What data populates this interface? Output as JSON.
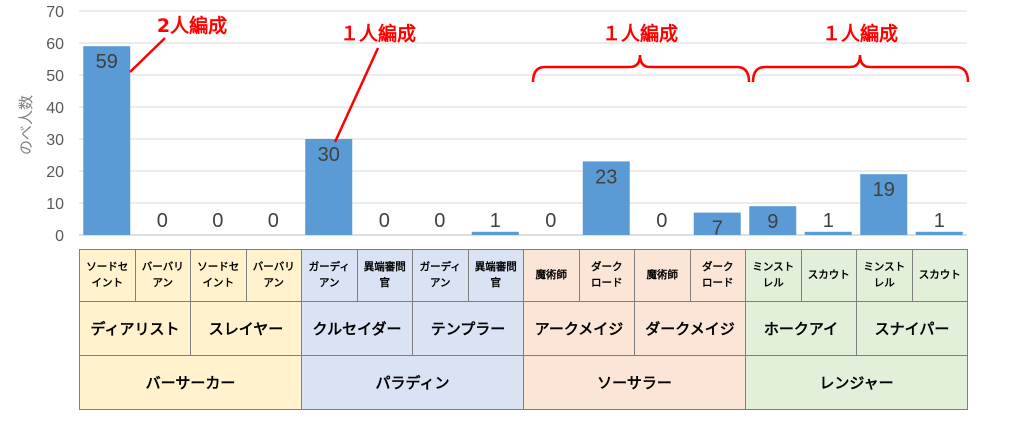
{
  "chart_data": {
    "type": "bar",
    "ylabel": "のべ人数",
    "ylim": [
      0,
      70
    ],
    "yticks": [
      0,
      10,
      20,
      30,
      40,
      50,
      60,
      70
    ],
    "grid": true,
    "categories": [
      "ソードセイント",
      "バーバリアン",
      "ソードセイント",
      "バーバリアン",
      "ガーディアン",
      "異端審問官",
      "ガーディアン",
      "異端審問官",
      "魔術師",
      "ダークロード",
      "魔術師",
      "ダークロード",
      "ミンストレル",
      "スカウト",
      "ミンストレル",
      "スカウト"
    ],
    "values": [
      59,
      0,
      0,
      0,
      30,
      0,
      0,
      1,
      0,
      23,
      0,
      7,
      9,
      1,
      19,
      1
    ],
    "annotations": [
      "2人編成",
      "１人編成",
      "１人編成",
      "１人編成"
    ]
  },
  "table": {
    "row1": [
      [
        "ソードセ",
        "イント"
      ],
      [
        "バーバリ",
        "アン"
      ],
      [
        "ソードセ",
        "イント"
      ],
      [
        "バーバリ",
        "アン"
      ],
      [
        "ガーディ",
        "アン"
      ],
      [
        "異端審問",
        "官"
      ],
      [
        "ガーディ",
        "アン"
      ],
      [
        "異端審問",
        "官"
      ],
      [
        "魔術師",
        ""
      ],
      [
        "ダーク",
        "ロード"
      ],
      [
        "魔術師",
        ""
      ],
      [
        "ダーク",
        "ロード"
      ],
      [
        "ミンスト",
        "レル"
      ],
      [
        "スカウト",
        ""
      ],
      [
        "ミンスト",
        "レル"
      ],
      [
        "スカウト",
        ""
      ]
    ],
    "row2": [
      "ディアリスト",
      "スレイヤー",
      "クルセイダー",
      "テンプラー",
      "アークメイジ",
      "ダークメイジ",
      "ホークアイ",
      "スナイパー"
    ],
    "row3": [
      "バーサーカー",
      "パラディン",
      "ソーサラー",
      "レンジャー"
    ]
  },
  "colors": {
    "bar": "#5b9bd5",
    "annotation": "#ff0000",
    "groups": [
      "#fff2cc",
      "#dae3f3",
      "#fbe5d6",
      "#e2f0d9"
    ]
  }
}
